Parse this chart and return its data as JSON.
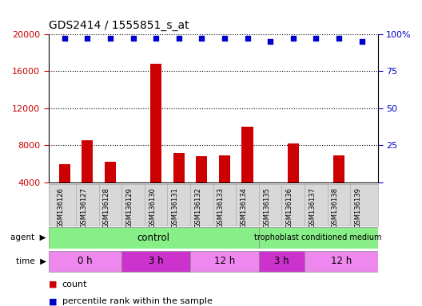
{
  "title": "GDS2414 / 1555851_s_at",
  "samples": [
    "GSM136126",
    "GSM136127",
    "GSM136128",
    "GSM136129",
    "GSM136130",
    "GSM136131",
    "GSM136132",
    "GSM136133",
    "GSM136134",
    "GSM136135",
    "GSM136136",
    "GSM136137",
    "GSM136138",
    "GSM136139"
  ],
  "counts": [
    6000,
    8500,
    6200,
    3800,
    16800,
    7200,
    6800,
    6900,
    10000,
    3900,
    8200,
    4000,
    6900,
    3900
  ],
  "percentile_ranks": [
    97,
    97,
    97,
    97,
    97,
    97,
    97,
    97,
    97,
    95,
    97,
    97,
    97,
    95
  ],
  "bar_color": "#cc0000",
  "dot_color": "#0000cc",
  "ylim_left": [
    4000,
    20000
  ],
  "ylim_right": [
    0,
    100
  ],
  "yticks_left": [
    4000,
    8000,
    12000,
    16000,
    20000
  ],
  "yticks_right": [
    0,
    25,
    50,
    75,
    100
  ],
  "xticklabel_area_color": "#d8d8d8",
  "agent_color_control": "#88ee88",
  "agent_color_tropho": "#88ee88",
  "time_color_light": "#ee88ee",
  "time_color_dark": "#cc33cc",
  "legend_count_color": "#cc0000",
  "legend_dot_color": "#0000cc",
  "bar_bottom": 4000
}
